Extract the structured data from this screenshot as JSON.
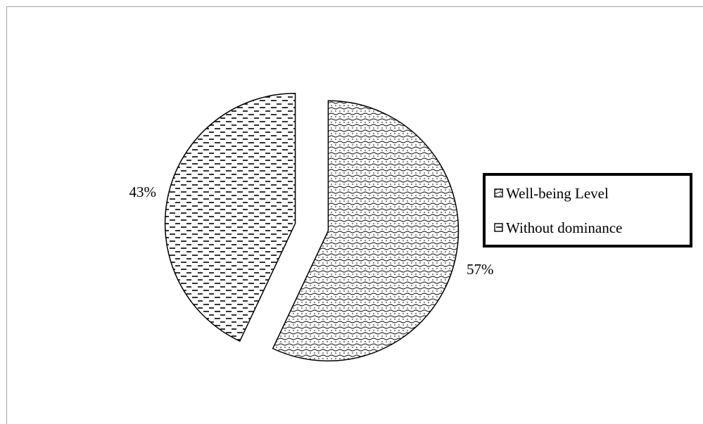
{
  "chart_data": {
    "type": "pie",
    "title": "",
    "slices": [
      {
        "label": "Well-being Level",
        "value": 57,
        "display": "57%",
        "pattern": "wave-dots"
      },
      {
        "label": "Without dominance",
        "value": 43,
        "display": "43%",
        "pattern": "dashes"
      }
    ],
    "exploded": true,
    "legend_position": "right",
    "colors": {
      "stroke": "#000000",
      "background": "#ffffff",
      "frame": "#a0a0a0"
    }
  }
}
